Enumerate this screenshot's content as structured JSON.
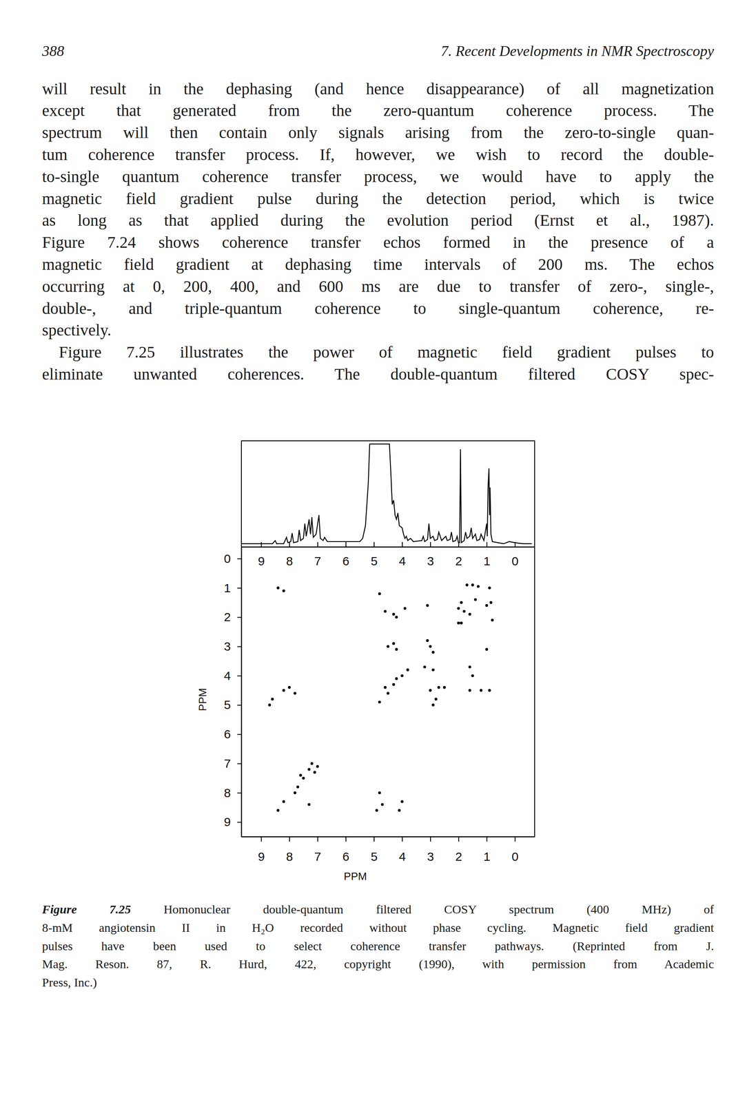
{
  "header": {
    "page_number": "388",
    "running_title": "7. Recent Developments in NMR Spectroscopy"
  },
  "paragraphs": [
    {
      "lines": [
        "will result in the dephasing (and hence disappearance) of all magnetization",
        "except that generated from the zero-quantum coherence process. The",
        "spectrum will then contain only signals arising from the zero-to-single quan-",
        "tum coherence transfer process. If, however, we wish to record the double-",
        "to-single quantum coherence transfer process, we would have to apply the",
        "magnetic field gradient pulse during the detection period, which is twice",
        "as long as that applied during the evolution period (Ernst et al., 1987).",
        "Figure 7.24 shows coherence transfer echos formed in the presence of a",
        "magnetic field gradient at dephasing time intervals of 200 ms. The echos",
        "occurring at 0, 200, 400, and 600 ms are due to transfer of zero-, single-,",
        "double-, and triple-quantum coherence to single-quantum coherence, re-",
        "spectively."
      ]
    },
    {
      "lines": [
        "Figure 7.25 illustrates the power of magnetic field gradient pulses to",
        "eliminate unwanted coherences. The double-quantum filtered COSY spec-"
      ]
    }
  ],
  "chart_data": [
    {
      "type": "line",
      "color": "#000000",
      "tick_labels": "x",
      "xlim": [
        9.7,
        -0.7
      ],
      "xticks": [
        9,
        8,
        7,
        6,
        5,
        4,
        3,
        2,
        1,
        0
      ],
      "ylim": [
        0,
        100
      ],
      "x": [
        9.7,
        8.6,
        8.5,
        8.45,
        8.2,
        8.1,
        8.05,
        7.95,
        7.9,
        7.85,
        7.7,
        7.65,
        7.6,
        7.5,
        7.45,
        7.4,
        7.3,
        7.25,
        7.2,
        7.15,
        7.05,
        6.95,
        6.9,
        6.8,
        6.75,
        6.65,
        5.5,
        5.4,
        5.3,
        5.2,
        5.15,
        4.45,
        4.4,
        4.35,
        4.3,
        4.25,
        4.2,
        4.15,
        4.1,
        4.0,
        3.95,
        3.9,
        3.85,
        3.8,
        3.7,
        3.6,
        3.3,
        3.25,
        3.2,
        3.1,
        3.05,
        3.0,
        2.9,
        2.85,
        2.75,
        2.7,
        2.6,
        2.45,
        2.4,
        2.3,
        2.25,
        2.2,
        2.1,
        2.05,
        2.0,
        1.96,
        1.93,
        1.9,
        1.8,
        1.75,
        1.7,
        1.6,
        1.55,
        1.5,
        1.4,
        1.35,
        1.25,
        1.2,
        1.1,
        1.0,
        0.98,
        0.95,
        0.92,
        0.9,
        0.88,
        0.85,
        0.8,
        0.6,
        0.4,
        0.2,
        0.0,
        -0.3,
        -0.6
      ],
      "values": [
        3,
        3,
        6,
        3,
        3,
        9,
        4,
        5,
        13,
        4,
        5,
        16,
        6,
        8,
        22,
        10,
        26,
        12,
        28,
        9,
        12,
        30,
        8,
        6,
        9,
        5,
        5,
        8,
        20,
        60,
        97,
        97,
        70,
        40,
        44,
        30,
        26,
        32,
        20,
        18,
        12,
        8,
        10,
        6,
        8,
        5,
        6,
        10,
        5,
        7,
        22,
        8,
        10,
        6,
        7,
        14,
        6,
        10,
        6,
        7,
        14,
        5,
        6,
        10,
        4,
        4,
        92,
        4,
        6,
        14,
        8,
        10,
        18,
        8,
        12,
        6,
        7,
        12,
        6,
        22,
        10,
        58,
        74,
        30,
        56,
        12,
        5,
        4,
        3,
        5,
        4,
        3,
        3
      ]
    },
    {
      "type": "scatter",
      "color": "#000000",
      "marker": "dot",
      "xlabel": "PPM",
      "ylabel": "PPM",
      "xlim": [
        9.7,
        -0.7
      ],
      "xticks": [
        9,
        8,
        7,
        6,
        5,
        4,
        3,
        2,
        1,
        0
      ],
      "ylim": [
        -0.4,
        9.5
      ],
      "yticks": [
        0,
        1,
        2,
        3,
        4,
        5,
        6,
        7,
        8,
        9
      ],
      "x": [
        1.7,
        1.5,
        1.3,
        0.9,
        0.85,
        1.9,
        1.6,
        1.0,
        1.8,
        1.4,
        2.0,
        2.0,
        0.8,
        1.9,
        8.4,
        8.2,
        4.8,
        4.3,
        4.6,
        3.9,
        4.2,
        3.1,
        4.5,
        4.3,
        4.2,
        3.0,
        3.1,
        2.9,
        1.0,
        3.2,
        2.9,
        1.6,
        1.5,
        4.6,
        4.2,
        3.0,
        2.7,
        2.5,
        1.6,
        1.2,
        0.9,
        8.2,
        8.0,
        7.8,
        8.6,
        8.7,
        4.8,
        2.8,
        2.9,
        7.3,
        7.5,
        7.6,
        7.2,
        7.0,
        7.1,
        7.7,
        8.2,
        8.4,
        7.8,
        7.3,
        4.8,
        4.7,
        4.9,
        4.0,
        4.1,
        4.3,
        4.0,
        3.8,
        4.5
      ],
      "values": [
        0.9,
        0.9,
        0.95,
        1.0,
        1.5,
        1.5,
        1.9,
        1.6,
        1.8,
        1.4,
        1.7,
        2.2,
        2.1,
        2.2,
        1.0,
        1.1,
        1.2,
        1.9,
        1.8,
        1.7,
        2.0,
        1.6,
        3.0,
        2.9,
        3.1,
        3.0,
        2.8,
        3.2,
        3.1,
        3.7,
        3.8,
        3.7,
        4.0,
        4.4,
        4.1,
        4.5,
        4.4,
        4.4,
        4.5,
        4.5,
        4.5,
        4.5,
        4.4,
        4.6,
        4.8,
        5.0,
        4.9,
        4.8,
        5.0,
        7.2,
        7.5,
        7.4,
        7.0,
        7.1,
        7.3,
        7.8,
        8.3,
        8.6,
        8.0,
        8.4,
        8.0,
        8.4,
        8.6,
        8.3,
        8.6,
        4.3,
        4.0,
        3.8,
        4.6
      ]
    }
  ],
  "caption": {
    "label": "Figure 7.25",
    "lines": [
      "Homonuclear double-quantum filtered COSY spectrum (400 MHz) of",
      "8-mM angiotensin II in H₂O recorded without phase cycling. Magnetic field gradient",
      "pulses have been used to select coherence transfer pathways. (Reprinted from J.",
      "Mag. Reson. 87, R. Hurd, 422, copyright (1990), with permission from Academic",
      "Press, Inc.)"
    ]
  }
}
